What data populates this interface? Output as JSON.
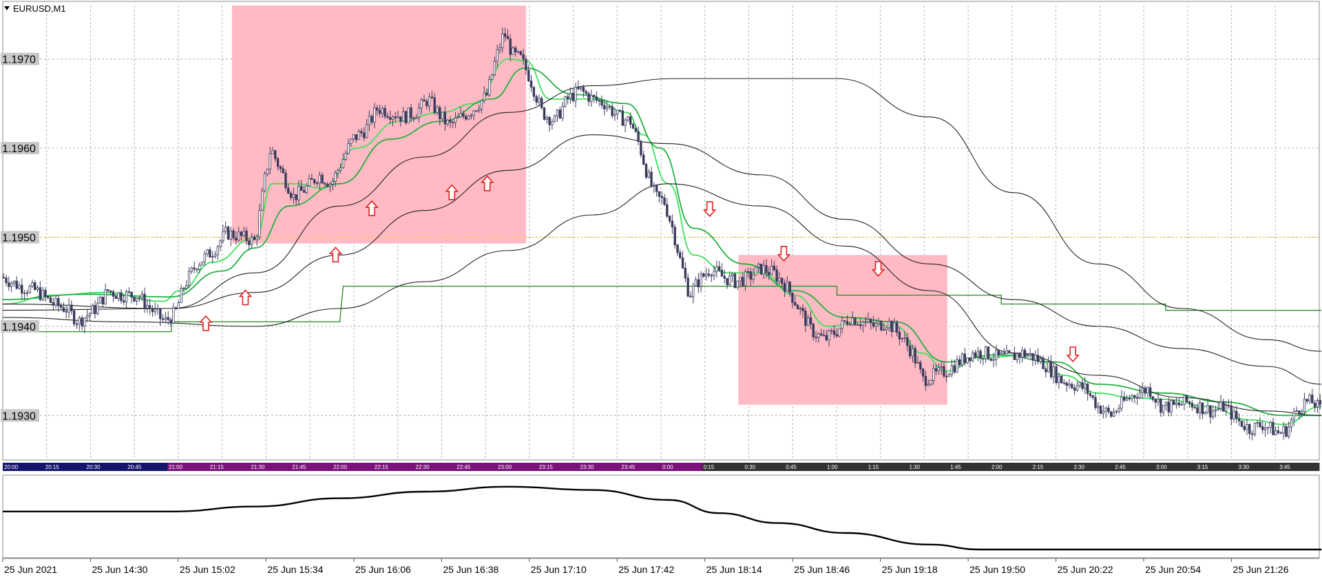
{
  "window": {
    "title": "EURUSD,M1",
    "menu_icon": "triangle-down-icon"
  },
  "colors": {
    "background": "#ffffff",
    "grid": "#b4b4b4",
    "candle": "#3a3a5c",
    "ema_fast": "#3ce05a",
    "ema_slow": "#20b040",
    "sma_black": "#222222",
    "level_green": "#1e8c1e",
    "highlight_box": "#ffb6c1",
    "arrow": "#e02020",
    "level_yellow": "#f5c542",
    "session_bar_blue": "#14146e",
    "session_bar_purple": "#7a127a",
    "session_bar_dark": "#333333",
    "indicator_line": "#000000"
  },
  "chart_data": {
    "type": "candlestick",
    "symbol": "EURUSD",
    "timeframe": "M1",
    "ylim": [
      1.1925,
      1.1976
    ],
    "y_ticks": [
      "1.1970",
      "1.1960",
      "1.1950",
      "1.1940",
      "1.1930"
    ],
    "x_ticks": [
      "25 Jun 2021",
      "25 Jun 14:30",
      "25 Jun 15:02",
      "25 Jun 15:34",
      "25 Jun 16:06",
      "25 Jun 16:38",
      "25 Jun 17:10",
      "25 Jun 17:42",
      "25 Jun 18:14",
      "25 Jun 18:46",
      "25 Jun 19:18",
      "25 Jun 19:50",
      "25 Jun 20:22",
      "25 Jun 20:54",
      "25 Jun 21:26"
    ],
    "session_labels": [
      {
        "text": "20:00",
        "band": "blue"
      },
      {
        "text": "20:15",
        "band": "blue"
      },
      {
        "text": "20:30",
        "band": "blue"
      },
      {
        "text": "20:45",
        "band": "blue"
      },
      {
        "text": "21:00",
        "band": "purple"
      },
      {
        "text": "21:15",
        "band": "purple"
      },
      {
        "text": "21:30",
        "band": "purple"
      },
      {
        "text": "21:45",
        "band": "purple"
      },
      {
        "text": "22:00",
        "band": "purple"
      },
      {
        "text": "22:15",
        "band": "purple"
      },
      {
        "text": "22:30",
        "band": "purple"
      },
      {
        "text": "22:45",
        "band": "purple"
      },
      {
        "text": "23:00",
        "band": "purple"
      },
      {
        "text": "23:15",
        "band": "purple"
      },
      {
        "text": "23:30",
        "band": "purple"
      },
      {
        "text": "23:45",
        "band": "purple"
      },
      {
        "text": "0:00",
        "band": "purple"
      },
      {
        "text": "0:15",
        "band": "dark"
      },
      {
        "text": "0:30",
        "band": "dark"
      },
      {
        "text": "0:45",
        "band": "dark"
      },
      {
        "text": "1:00",
        "band": "dark"
      },
      {
        "text": "1:15",
        "band": "dark"
      },
      {
        "text": "1:30",
        "band": "dark"
      },
      {
        "text": "1:45",
        "band": "dark"
      },
      {
        "text": "2:00",
        "band": "dark"
      },
      {
        "text": "2:15",
        "band": "dark"
      },
      {
        "text": "2:30",
        "band": "dark"
      },
      {
        "text": "2:45",
        "band": "dark"
      },
      {
        "text": "3:00",
        "band": "dark"
      },
      {
        "text": "3:15",
        "band": "dark"
      },
      {
        "text": "3:30",
        "band": "dark"
      },
      {
        "text": "3:45",
        "band": "dark"
      }
    ],
    "price_path": [
      [
        0,
        1.19455
      ],
      [
        20,
        1.19445
      ],
      [
        40,
        1.1944
      ],
      [
        60,
        1.19425
      ],
      [
        75,
        1.1942
      ],
      [
        90,
        1.19405
      ],
      [
        110,
        1.1942
      ],
      [
        125,
        1.1944
      ],
      [
        140,
        1.19435
      ],
      [
        160,
        1.19435
      ],
      [
        175,
        1.1942
      ],
      [
        192,
        1.19405
      ],
      [
        205,
        1.19415
      ],
      [
        215,
        1.19445
      ],
      [
        230,
        1.1947
      ],
      [
        250,
        1.19485
      ],
      [
        265,
        1.19505
      ],
      [
        285,
        1.195
      ],
      [
        300,
        1.19495
      ],
      [
        310,
        1.1956
      ],
      [
        318,
        1.196
      ],
      [
        330,
        1.19575
      ],
      [
        345,
        1.19545
      ],
      [
        360,
        1.19555
      ],
      [
        375,
        1.1957
      ],
      [
        390,
        1.1956
      ],
      [
        400,
        1.1958
      ],
      [
        415,
        1.1961
      ],
      [
        430,
        1.1962
      ],
      [
        445,
        1.19645
      ],
      [
        460,
        1.1964
      ],
      [
        475,
        1.19635
      ],
      [
        490,
        1.1964
      ],
      [
        505,
        1.19655
      ],
      [
        520,
        1.19635
      ],
      [
        530,
        1.19625
      ],
      [
        545,
        1.19635
      ],
      [
        560,
        1.19645
      ],
      [
        575,
        1.1966
      ],
      [
        585,
        1.197
      ],
      [
        595,
        1.1973
      ],
      [
        605,
        1.19705
      ],
      [
        615,
        1.197
      ],
      [
        625,
        1.1968
      ],
      [
        640,
        1.1964
      ],
      [
        655,
        1.1963
      ],
      [
        670,
        1.19655
      ],
      [
        685,
        1.19665
      ],
      [
        700,
        1.19655
      ],
      [
        715,
        1.1965
      ],
      [
        730,
        1.19635
      ],
      [
        745,
        1.1963
      ],
      [
        755,
        1.19605
      ],
      [
        765,
        1.1957
      ],
      [
        775,
        1.19545
      ],
      [
        785,
        1.1954
      ],
      [
        795,
        1.1951
      ],
      [
        805,
        1.1947
      ],
      [
        815,
        1.19435
      ],
      [
        825,
        1.1945
      ],
      [
        840,
        1.19465
      ],
      [
        855,
        1.19455
      ],
      [
        870,
        1.1945
      ],
      [
        885,
        1.19455
      ],
      [
        900,
        1.19465
      ],
      [
        915,
        1.1946
      ],
      [
        930,
        1.19445
      ],
      [
        945,
        1.1942
      ],
      [
        960,
        1.19395
      ],
      [
        975,
        1.19385
      ],
      [
        990,
        1.19395
      ],
      [
        1005,
        1.1941
      ],
      [
        1020,
        1.19405
      ],
      [
        1035,
        1.194
      ],
      [
        1050,
        1.19405
      ],
      [
        1065,
        1.1939
      ],
      [
        1080,
        1.1937
      ],
      [
        1092,
        1.1934
      ],
      [
        1105,
        1.19345
      ],
      [
        1120,
        1.1935
      ],
      [
        1135,
        1.1936
      ],
      [
        1150,
        1.1937
      ],
      [
        1165,
        1.1937
      ],
      [
        1180,
        1.19365
      ],
      [
        1195,
        1.19365
      ],
      [
        1210,
        1.1937
      ],
      [
        1225,
        1.19365
      ],
      [
        1240,
        1.19355
      ],
      [
        1255,
        1.1934
      ],
      [
        1270,
        1.19335
      ],
      [
        1285,
        1.1933
      ],
      [
        1300,
        1.1931
      ],
      [
        1315,
        1.193
      ],
      [
        1330,
        1.19315
      ],
      [
        1345,
        1.19325
      ],
      [
        1360,
        1.1933
      ],
      [
        1375,
        1.1931
      ],
      [
        1390,
        1.1931
      ],
      [
        1405,
        1.19315
      ],
      [
        1420,
        1.1931
      ],
      [
        1435,
        1.19305
      ],
      [
        1450,
        1.1931
      ],
      [
        1465,
        1.19295
      ],
      [
        1480,
        1.19285
      ],
      [
        1495,
        1.1929
      ],
      [
        1505,
        1.19285
      ],
      [
        1515,
        1.1928
      ],
      [
        1525,
        1.19285
      ],
      [
        1535,
        1.19305
      ],
      [
        1545,
        1.19315
      ],
      [
        1555,
        1.19315
      ],
      [
        1565,
        1.19305
      ]
    ],
    "lines": [
      {
        "id": "ema-fast",
        "color": "#3ce05a",
        "points": [
          [
            0,
            1.19425
          ],
          [
            60,
            1.19435
          ],
          [
            120,
            1.19438
          ],
          [
            190,
            1.19428
          ],
          [
            210,
            1.1944
          ],
          [
            250,
            1.19472
          ],
          [
            300,
            1.195
          ],
          [
            320,
            1.1956
          ],
          [
            345,
            1.1956
          ],
          [
            380,
            1.19555
          ],
          [
            420,
            1.196
          ],
          [
            470,
            1.1963
          ],
          [
            520,
            1.1964
          ],
          [
            560,
            1.1965
          ],
          [
            600,
            1.197
          ],
          [
            620,
            1.19698
          ],
          [
            650,
            1.19655
          ],
          [
            700,
            1.19655
          ],
          [
            740,
            1.1964
          ],
          [
            760,
            1.19615
          ],
          [
            790,
            1.1956
          ],
          [
            820,
            1.1948
          ],
          [
            860,
            1.1946
          ],
          [
            900,
            1.1946
          ],
          [
            940,
            1.19435
          ],
          [
            980,
            1.194
          ],
          [
            1020,
            1.19405
          ],
          [
            1060,
            1.194
          ],
          [
            1090,
            1.1937
          ],
          [
            1120,
            1.1935
          ],
          [
            1160,
            1.19365
          ],
          [
            1220,
            1.19368
          ],
          [
            1260,
            1.19345
          ],
          [
            1300,
            1.19325
          ],
          [
            1340,
            1.1932
          ],
          [
            1380,
            1.19318
          ],
          [
            1430,
            1.1931
          ],
          [
            1480,
            1.19295
          ],
          [
            1520,
            1.1929
          ],
          [
            1565,
            1.1931
          ]
        ]
      },
      {
        "id": "ema-slow",
        "color": "#20b040",
        "points": [
          [
            0,
            1.1943
          ],
          [
            100,
            1.19436
          ],
          [
            200,
            1.19433
          ],
          [
            260,
            1.19462
          ],
          [
            300,
            1.19488
          ],
          [
            340,
            1.19535
          ],
          [
            400,
            1.1956
          ],
          [
            460,
            1.1961
          ],
          [
            520,
            1.1963
          ],
          [
            580,
            1.19655
          ],
          [
            620,
            1.1969
          ],
          [
            680,
            1.1966
          ],
          [
            740,
            1.1965
          ],
          [
            780,
            1.196
          ],
          [
            820,
            1.1951
          ],
          [
            880,
            1.1947
          ],
          [
            940,
            1.1944
          ],
          [
            1000,
            1.1941
          ],
          [
            1060,
            1.19405
          ],
          [
            1120,
            1.1936
          ],
          [
            1180,
            1.19368
          ],
          [
            1250,
            1.1936
          ],
          [
            1300,
            1.19335
          ],
          [
            1380,
            1.19325
          ],
          [
            1450,
            1.19315
          ],
          [
            1520,
            1.193
          ],
          [
            1565,
            1.193
          ]
        ]
      },
      {
        "id": "sma-upper",
        "color": "#222222",
        "points": [
          [
            0,
            1.19425
          ],
          [
            200,
            1.1942
          ],
          [
            300,
            1.1946
          ],
          [
            400,
            1.19535
          ],
          [
            500,
            1.1959
          ],
          [
            600,
            1.1964
          ],
          [
            700,
            1.1967
          ],
          [
            800,
            1.19678
          ],
          [
            900,
            1.19678
          ],
          [
            990,
            1.19678
          ],
          [
            1100,
            1.19635
          ],
          [
            1200,
            1.1955
          ],
          [
            1300,
            1.1947
          ],
          [
            1400,
            1.1942
          ],
          [
            1500,
            1.19385
          ],
          [
            1565,
            1.19372
          ]
        ]
      },
      {
        "id": "sma-middle",
        "color": "#222222",
        "points": [
          [
            0,
            1.19418
          ],
          [
            200,
            1.1942
          ],
          [
            300,
            1.19438
          ],
          [
            400,
            1.1948
          ],
          [
            500,
            1.1953
          ],
          [
            600,
            1.19575
          ],
          [
            700,
            1.19615
          ],
          [
            790,
            1.19605
          ],
          [
            900,
            1.1957
          ],
          [
            1000,
            1.1952
          ],
          [
            1100,
            1.1947
          ],
          [
            1200,
            1.1943
          ],
          [
            1300,
            1.194
          ],
          [
            1400,
            1.19375
          ],
          [
            1500,
            1.19355
          ],
          [
            1565,
            1.19335
          ]
        ]
      },
      {
        "id": "sma-lower",
        "color": "#222222",
        "points": [
          [
            0,
            1.1941
          ],
          [
            150,
            1.19405
          ],
          [
            300,
            1.194
          ],
          [
            400,
            1.1942
          ],
          [
            500,
            1.1945
          ],
          [
            600,
            1.19485
          ],
          [
            700,
            1.19525
          ],
          [
            790,
            1.1956
          ],
          [
            900,
            1.19535
          ],
          [
            1000,
            1.1949
          ],
          [
            1100,
            1.1944
          ],
          [
            1200,
            1.1937
          ],
          [
            1300,
            1.19345
          ],
          [
            1400,
            1.1932
          ],
          [
            1500,
            1.19305
          ],
          [
            1565,
            1.193
          ]
        ]
      }
    ],
    "step_line": {
      "color": "#1e8c1e",
      "points": [
        [
          0,
          1.19394
        ],
        [
          200,
          1.19394
        ],
        [
          200,
          1.19405
        ],
        [
          400,
          1.19405
        ],
        [
          404,
          1.19445
        ],
        [
          790,
          1.19445
        ],
        [
          990,
          1.19445
        ],
        [
          990,
          1.19435
        ],
        [
          1185,
          1.19435
        ],
        [
          1185,
          1.19425
        ],
        [
          1380,
          1.19425
        ],
        [
          1380,
          1.19418
        ],
        [
          1565,
          1.19418
        ]
      ]
    },
    "horizontal_level": {
      "value": 1.195,
      "color": "#f5c542"
    },
    "highlight_boxes": [
      {
        "x_from": 272,
        "x_to": 621,
        "y_top": 1.1976,
        "y_bottom": 1.19493
      },
      {
        "x_from": 873,
        "x_to": 1121,
        "y_top": 1.1948,
        "y_bottom": 1.19312
      }
    ],
    "arrows": [
      {
        "dir": "up",
        "x": 241,
        "price": 1.19403
      },
      {
        "dir": "up",
        "x": 288,
        "price": 1.19432
      },
      {
        "dir": "up",
        "x": 395,
        "price": 1.1948
      },
      {
        "dir": "up",
        "x": 438,
        "price": 1.19532
      },
      {
        "dir": "up",
        "x": 533,
        "price": 1.1955
      },
      {
        "dir": "up",
        "x": 575,
        "price": 1.1956
      },
      {
        "dir": "down",
        "x": 839,
        "price": 1.19532
      },
      {
        "dir": "down",
        "x": 927,
        "price": 1.19482
      },
      {
        "dir": "down",
        "x": 1039,
        "price": 1.19465
      },
      {
        "dir": "down",
        "x": 1270,
        "price": 1.19369
      }
    ],
    "indicator_line": {
      "points": [
        [
          0,
          0.56
        ],
        [
          200,
          0.56
        ],
        [
          300,
          0.62
        ],
        [
          400,
          0.72
        ],
        [
          500,
          0.8
        ],
        [
          600,
          0.86
        ],
        [
          700,
          0.82
        ],
        [
          790,
          0.7
        ],
        [
          850,
          0.54
        ],
        [
          920,
          0.42
        ],
        [
          1000,
          0.3
        ],
        [
          1100,
          0.16
        ],
        [
          1160,
          0.1
        ],
        [
          1300,
          0.1
        ],
        [
          1450,
          0.1
        ],
        [
          1565,
          0.1
        ]
      ]
    }
  }
}
